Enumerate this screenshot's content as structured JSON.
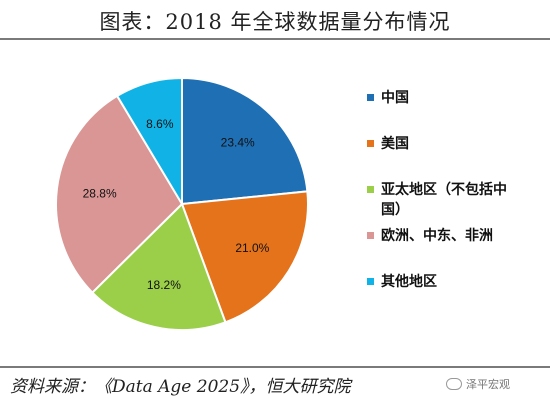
{
  "header": {
    "title": "图表：2018 年全球数据量分布情况"
  },
  "footer": {
    "source": "资料来源：《Data Age 2025》，恒大研究院",
    "watermark": "泽平宏观"
  },
  "chart_data": {
    "type": "pie",
    "title": "图表：2018 年全球数据量分布情况",
    "categories": [
      "中国",
      "美国",
      "亚太地区（不包括中国）",
      "欧洲、中东、非洲",
      "其他地区"
    ],
    "values": [
      23.4,
      21.0,
      18.2,
      28.8,
      8.6
    ],
    "value_labels": [
      "23.4%",
      "21.0%",
      "18.2%",
      "28.8%",
      "8.6%"
    ],
    "colors": [
      "#1f6fb5",
      "#e4731b",
      "#9bcf4a",
      "#d99694",
      "#11b3e6"
    ],
    "legend": {
      "placement": "right",
      "items": [
        {
          "label_lines": [
            "中国"
          ],
          "color": "#1f6fb5"
        },
        {
          "label_lines": [
            "美国"
          ],
          "color": "#e4731b"
        },
        {
          "label_lines": [
            "亚太地区（不包括中",
            "国）"
          ],
          "color": "#9bcf4a"
        },
        {
          "label_lines": [
            "欧洲、中东、非洲"
          ],
          "color": "#d99694"
        },
        {
          "label_lines": [
            "其他地区"
          ],
          "color": "#11b3e6"
        }
      ]
    }
  }
}
